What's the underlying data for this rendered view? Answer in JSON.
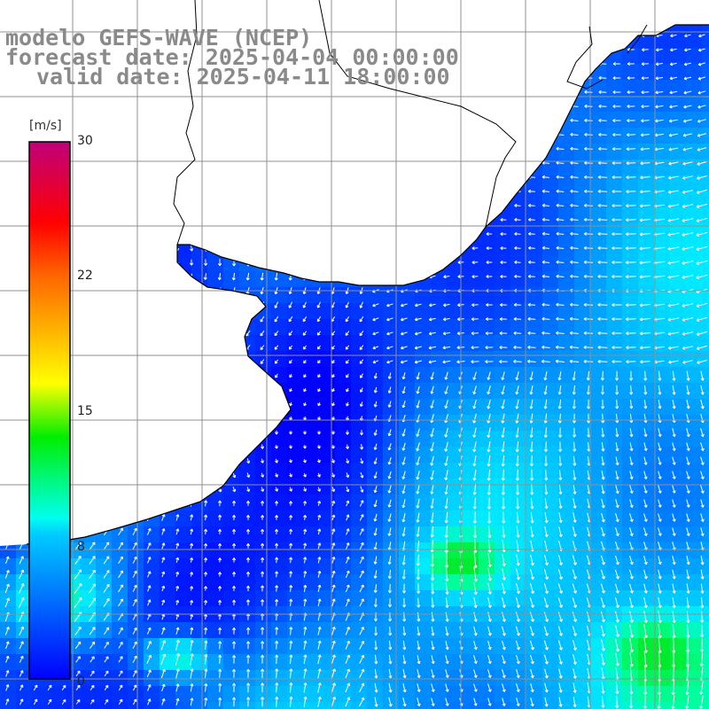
{
  "title": {
    "model": "modelo GEFS-WAVE (NCEP)",
    "forecast": "forecast date: 2025-04-04 00:00:00",
    "valid": "valid date: 2025-04-11 18:00:00"
  },
  "colorbar": {
    "unit": "[m/s]",
    "ticks": [
      {
        "value": 30,
        "label": "30"
      },
      {
        "value": 22,
        "label": "22"
      },
      {
        "value": 15,
        "label": "15"
      },
      {
        "value": 8,
        "label": "8"
      },
      {
        "value": 0,
        "label": "0"
      }
    ],
    "colors": [
      "#0000ff",
      "#00c8ff",
      "#00ffff",
      "#00ff00",
      "#ffff00",
      "#ff8c00",
      "#ff0000",
      "#c8006e"
    ]
  },
  "map": {
    "land_color": "#ffffff",
    "ocean_color": "#00aaff",
    "grid_color": "#909090",
    "coast_color": "#000000",
    "arrow_color": "#ffffff"
  }
}
